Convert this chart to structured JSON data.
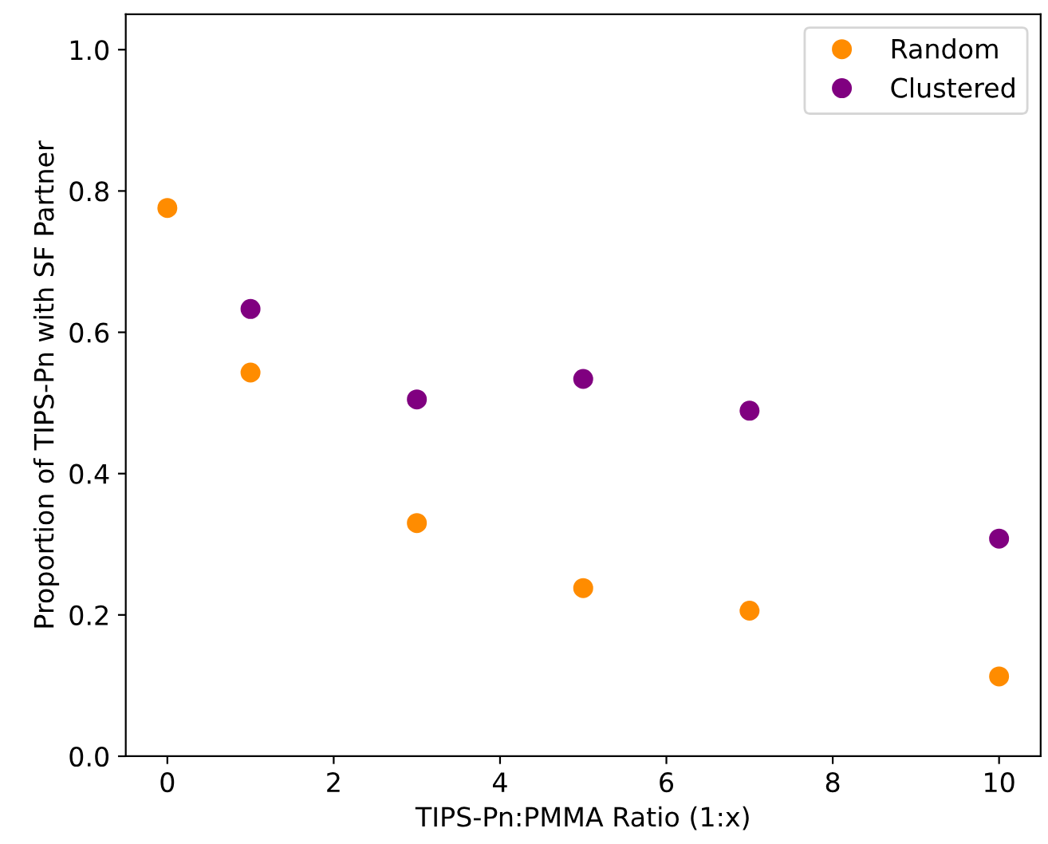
{
  "chart_data": {
    "type": "scatter",
    "xlabel": "TIPS-Pn:PMMA Ratio (1:x)",
    "ylabel": "Proportion of TIPS-Pn with SF Partner",
    "series": [
      {
        "name": "Random",
        "color": "#ff8c00",
        "x": [
          0,
          1,
          3,
          5,
          7,
          10
        ],
        "values": [
          0.776,
          0.543,
          0.33,
          0.238,
          0.206,
          0.113
        ]
      },
      {
        "name": "Clustered",
        "color": "#800080",
        "x": [
          1,
          3,
          5,
          7,
          10
        ],
        "values": [
          0.633,
          0.505,
          0.534,
          0.489,
          0.308
        ]
      }
    ],
    "xlim": [
      -0.5,
      10.5
    ],
    "xticks": [
      0,
      2,
      4,
      6,
      8,
      10
    ],
    "ylim": [
      0,
      1.05
    ],
    "yticks": [
      {
        "value": 0,
        "label": "0.0"
      },
      0.2,
      0.4,
      0.6,
      0.8,
      {
        "value": 1,
        "label": "1.0"
      }
    ],
    "marker": "circle",
    "legend": "top right",
    "grid": false
  }
}
